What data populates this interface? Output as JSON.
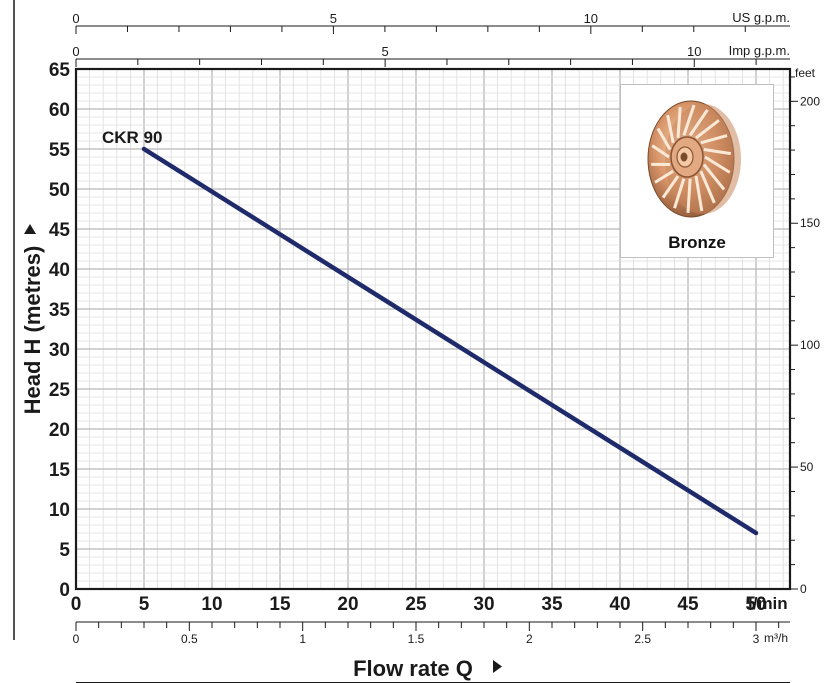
{
  "chart_data": {
    "type": "line",
    "series": [
      {
        "name": "CKR 90",
        "x": [
          5,
          50
        ],
        "y": [
          55,
          7
        ],
        "color": "#1f2a6b"
      }
    ],
    "x_axis": {
      "label": "Flow rate Q",
      "unit": "l/min",
      "range": [
        0,
        52.5
      ],
      "ticks": [
        0,
        5,
        10,
        15,
        20,
        25,
        30,
        35,
        40,
        45,
        50
      ]
    },
    "y_axis": {
      "label": "Head H (metres)",
      "range": [
        0,
        65
      ],
      "ticks": [
        0,
        5,
        10,
        15,
        20,
        25,
        30,
        35,
        40,
        45,
        50,
        55,
        60,
        65
      ]
    },
    "y_axis_right": {
      "unit": "feet",
      "ticks": [
        0,
        50,
        100,
        150,
        200
      ]
    },
    "x_axis_top_us": {
      "unit": "US g.p.m.",
      "ticks": [
        0,
        5,
        10
      ]
    },
    "x_axis_top_imp": {
      "unit": "Imp g.p.m.",
      "ticks": [
        0,
        5,
        10
      ]
    },
    "x_axis_bottom_m3h": {
      "unit": "m³/h",
      "ticks": [
        "0",
        "0.5",
        "1",
        "1.5",
        "2",
        "2.5",
        "3"
      ]
    },
    "inset": {
      "label": "Bronze",
      "image": "bronze-impeller"
    },
    "grid": true,
    "line_color": "#1f2a6b"
  }
}
